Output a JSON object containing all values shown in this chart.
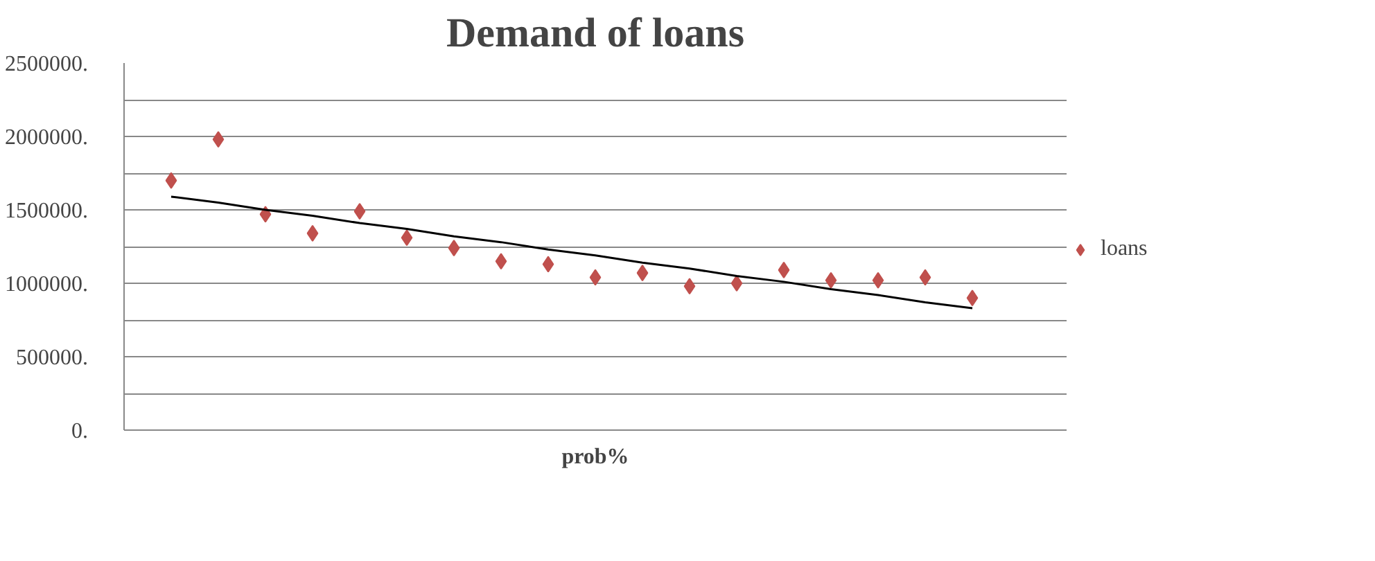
{
  "chart_data": {
    "type": "scatter",
    "title": "Demand of loans",
    "xlabel": "prob%",
    "categories": [
      null,
      null,
      null,
      null,
      null,
      null,
      null,
      null,
      null,
      null,
      null,
      null,
      null,
      null,
      null,
      null,
      null,
      null
    ],
    "series": [
      {
        "name": "loans",
        "color": "#c0504d",
        "marker": "diamond",
        "values": [
          1700000,
          1980000,
          1470000,
          1340000,
          1490000,
          1310000,
          1240000,
          1150000,
          1130000,
          1040000,
          1070000,
          980000,
          1000000,
          1090000,
          1020000,
          1020000,
          1040000,
          900000
        ]
      },
      {
        "type": "line",
        "color": "#000000",
        "line_style": "solid",
        "values": [
          1590000,
          1550000,
          1500000,
          1460000,
          1410000,
          1370000,
          1320000,
          1280000,
          1230000,
          1190000,
          1140000,
          1100000,
          1050000,
          1010000,
          960000,
          920000,
          870000,
          830000
        ]
      }
    ],
    "ylim": [
      0,
      2500000
    ],
    "yticks": [
      {
        "value": 0,
        "label": "0."
      },
      {
        "value": 250000,
        "label": null
      },
      {
        "value": 500000,
        "label": "500000."
      },
      {
        "value": 750000,
        "label": null
      },
      {
        "value": 1000000,
        "label": "1000000."
      },
      {
        "value": 1250000,
        "label": null
      },
      {
        "value": 1500000,
        "label": "1500000."
      },
      {
        "value": 1750000,
        "label": null
      },
      {
        "value": 2000000,
        "label": "2000000."
      },
      {
        "value": 2250000,
        "label": null
      },
      {
        "value": 2500000,
        "label": "2500000."
      }
    ],
    "grid": "y",
    "legend": "right"
  }
}
